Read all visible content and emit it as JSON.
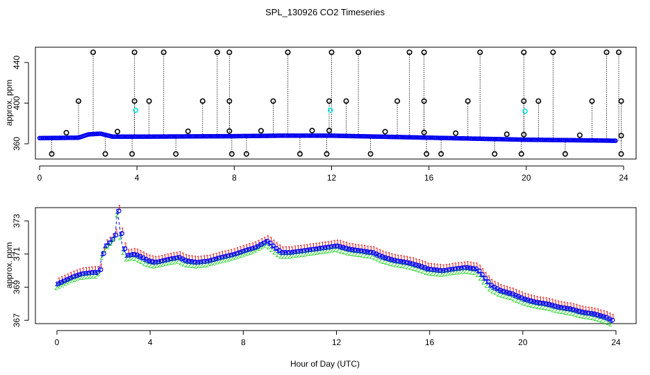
{
  "title": "SPL_130926  CO2 Timeseries",
  "xlabel": "Hour of Day (UTC)",
  "colors": {
    "main": "#0000ee",
    "flag": "#000000",
    "alt": "#00e5e5",
    "s1": "#dd0000",
    "s2": "#00cc00"
  },
  "chart_data": [
    {
      "type": "scatter",
      "ylabel": "approx. ppm",
      "xlim": [
        0,
        24
      ],
      "ylim": [
        345,
        455
      ],
      "x_ticks": [
        0,
        4,
        8,
        12,
        16,
        20,
        24
      ],
      "y_ticks": [
        360,
        400,
        440
      ],
      "baseline": [
        [
          0,
          365.6
        ],
        [
          1.6,
          366.0
        ],
        [
          2.0,
          369.2
        ],
        [
          2.5,
          370.0
        ],
        [
          3.0,
          367.0
        ],
        [
          4.0,
          367.0
        ],
        [
          8.0,
          367.5
        ],
        [
          10.0,
          368.0
        ],
        [
          12.0,
          368.0
        ],
        [
          13.0,
          367.5
        ],
        [
          16.0,
          366.0
        ],
        [
          18.0,
          365.0
        ],
        [
          19.0,
          364.5
        ],
        [
          20.0,
          364.0
        ],
        [
          22.0,
          363.5
        ],
        [
          23.7,
          363.0
        ]
      ],
      "flag_high": [
        2.2,
        3.9,
        5.1,
        7.3,
        7.8,
        10.2,
        12.0,
        13.1,
        15.2,
        15.8,
        18.1,
        19.9,
        21.1,
        23.3,
        23.8
      ],
      "flag_high_value": 450,
      "flag_mid": [
        1.6,
        3.9,
        4.5,
        6.7,
        7.8,
        9.6,
        11.9,
        12.6,
        14.7,
        15.8,
        17.6,
        19.9,
        20.5,
        22.7,
        23.9
      ],
      "flag_mid_value": 402,
      "flag_low": [
        0.5,
        2.7,
        3.8,
        5.6,
        7.9,
        8.5,
        10.7,
        11.8,
        13.6,
        15.9,
        16.5,
        18.7,
        19.8,
        21.6,
        23.9
      ],
      "flag_low_value": 350,
      "flag_small": [
        1.1,
        3.2,
        6.1,
        7.8,
        9.1,
        11.2,
        11.9,
        14.2,
        15.8,
        17.1,
        19.2,
        19.9,
        22.2,
        23.9
      ],
      "alt_points": [
        [
          3.95,
          393
        ],
        [
          11.95,
          393
        ],
        [
          19.95,
          392
        ]
      ]
    },
    {
      "type": "line",
      "ylabel": "approx. ppm",
      "xlim": [
        0,
        24
      ],
      "ylim": [
        366.8,
        373.8
      ],
      "x_ticks": [
        0,
        4,
        8,
        12,
        16,
        20,
        24
      ],
      "y_ticks": [
        367,
        369,
        371,
        373
      ],
      "series": [
        {
          "x": [
            0.0,
            0.3,
            0.6,
            1.0,
            1.5,
            1.8,
            2.0,
            2.3,
            2.5,
            2.6,
            2.8,
            3.0,
            3.3,
            3.6,
            3.9,
            4.2,
            4.8,
            5.2,
            5.5,
            6.0,
            6.5,
            7.0,
            7.6,
            8.0,
            8.5,
            9.0,
            9.3,
            9.6,
            10.0,
            10.5,
            11.0,
            11.5,
            12.0,
            12.5,
            13.0,
            13.5,
            14.0,
            14.5,
            15.0,
            15.5,
            15.9,
            16.5,
            17.0,
            17.5,
            18.0,
            18.3,
            18.6,
            19.0,
            19.5,
            20.0,
            20.5,
            21.0,
            21.5,
            22.0,
            22.5,
            23.0,
            23.5,
            23.8
          ],
          "y": [
            369.2,
            369.4,
            369.6,
            369.8,
            369.9,
            369.9,
            371.4,
            371.8,
            372.2,
            373.6,
            371.5,
            370.9,
            371.0,
            370.8,
            370.6,
            370.5,
            370.7,
            370.8,
            370.6,
            370.5,
            370.6,
            370.8,
            371.0,
            371.2,
            371.4,
            371.8,
            371.4,
            371.1,
            371.1,
            371.2,
            371.3,
            371.4,
            371.5,
            371.3,
            371.2,
            371.1,
            370.8,
            370.6,
            370.5,
            370.3,
            370.1,
            370.0,
            370.1,
            370.2,
            370.1,
            369.6,
            369.1,
            368.8,
            368.6,
            368.3,
            368.1,
            368.0,
            367.8,
            367.7,
            367.5,
            367.4,
            367.2,
            367.0
          ]
        }
      ]
    }
  ]
}
